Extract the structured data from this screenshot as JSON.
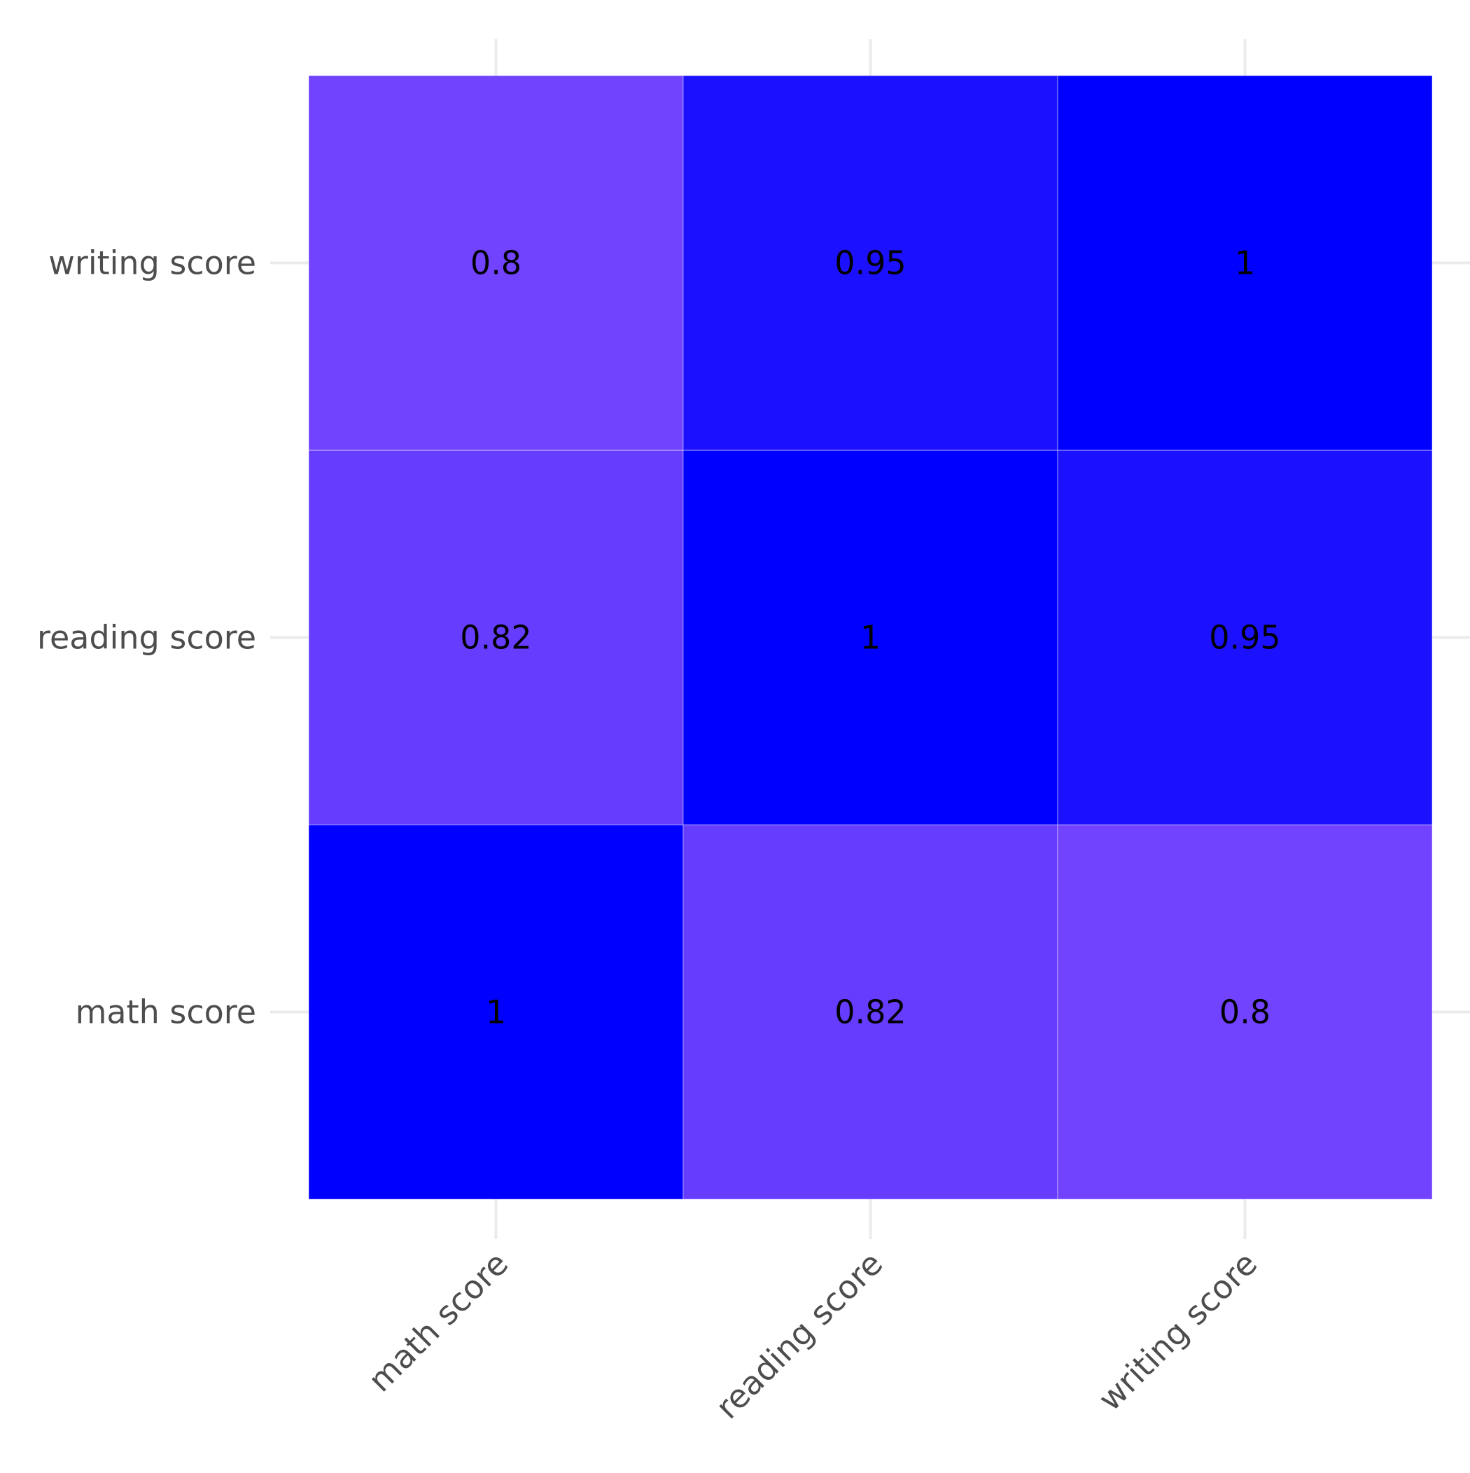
{
  "chart_data": {
    "type": "heatmap",
    "title": "",
    "xlabel": "",
    "ylabel": "",
    "x_categories": [
      "math score",
      "reading score",
      "writing score"
    ],
    "y_categories": [
      "math score",
      "reading score",
      "writing score"
    ],
    "values": [
      [
        1,
        0.82,
        0.8
      ],
      [
        0.82,
        1,
        0.95
      ],
      [
        0.8,
        0.95,
        1
      ]
    ],
    "cell_labels": [
      [
        "1",
        "0.82",
        "0.8"
      ],
      [
        "0.82",
        "1",
        "0.95"
      ],
      [
        "0.8",
        "0.95",
        "1"
      ]
    ],
    "color_scale": {
      "low_value": 0.8,
      "low_color": "#7143ff",
      "high_value": 1,
      "high_color": "#0000ff"
    },
    "grid": true,
    "legend": "none"
  }
}
